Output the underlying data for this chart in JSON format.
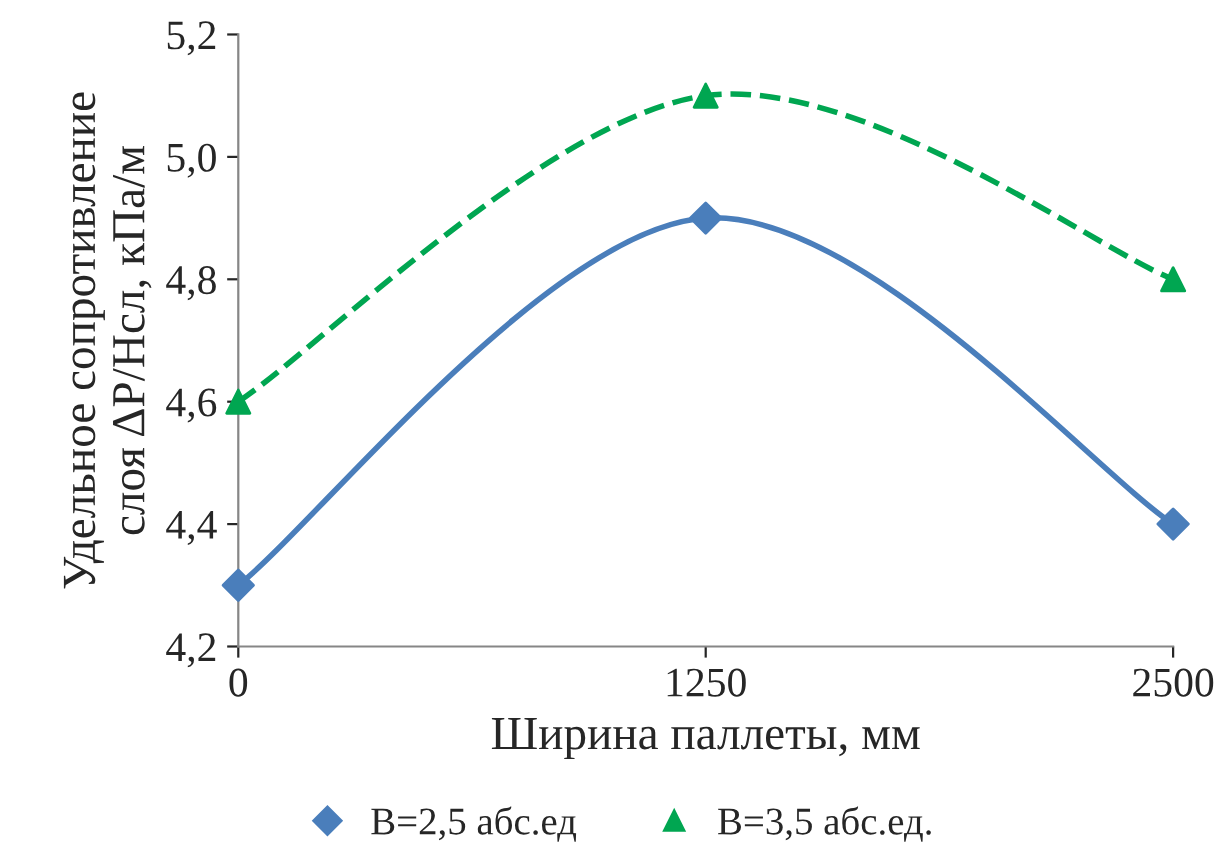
{
  "chart_data": {
    "type": "line",
    "xlabel": "Ширина паллеты, мм",
    "ylabel": "Удельное сопротивление\nслоя ΔP/Hсл, кПа/м",
    "x": [
      0,
      1250,
      2500
    ],
    "series": [
      {
        "name": "B=2,5 абс.ед",
        "color": "#4a7ebb",
        "values": [
          4.3,
          4.9,
          4.4
        ],
        "marker": "diamond",
        "line_style": "solid"
      },
      {
        "name": "B=3,5 абс.ед.",
        "color": "#00a651",
        "values": [
          4.6,
          5.1,
          4.8
        ],
        "marker": "triangle",
        "line_style": "dashed"
      }
    ],
    "xlim": [
      0,
      2500
    ],
    "xticks": [
      0,
      1250,
      2500
    ],
    "ylim": [
      4.2,
      5.2
    ],
    "yticks": [
      {
        "value": 4.2,
        "label": "4,2"
      },
      {
        "value": 4.4,
        "label": "4,4"
      },
      {
        "value": 4.6,
        "label": "4,6"
      },
      {
        "value": 4.8,
        "label": "4,8"
      },
      {
        "value": 5.0,
        "label": "5,0"
      },
      {
        "value": 5.2,
        "label": "5,2"
      }
    ],
    "grid": false,
    "legend": "bottom"
  }
}
